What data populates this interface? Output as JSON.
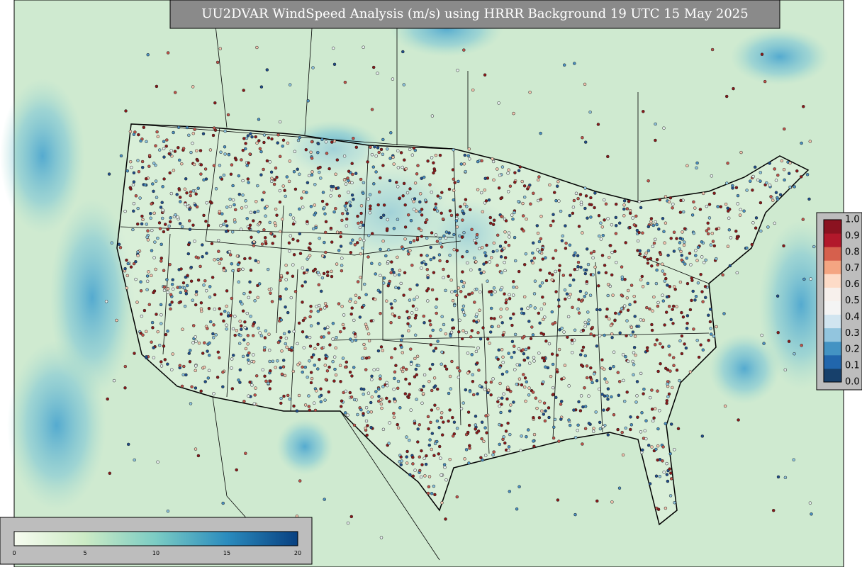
{
  "title": "UU2DVAR WindSpeed Analysis (m/s) using HRRR Background 19 UTC 15 May 2025",
  "right_colorbar": {
    "ticks": [
      "0.0",
      "0.1",
      "0.2",
      "0.3",
      "0.4",
      "0.5",
      "0.6",
      "0.7",
      "0.8",
      "0.9",
      "1.0"
    ]
  },
  "bottom_colorbar": {
    "ticks": [
      "0",
      "5",
      "10",
      "15",
      "20"
    ]
  }
}
